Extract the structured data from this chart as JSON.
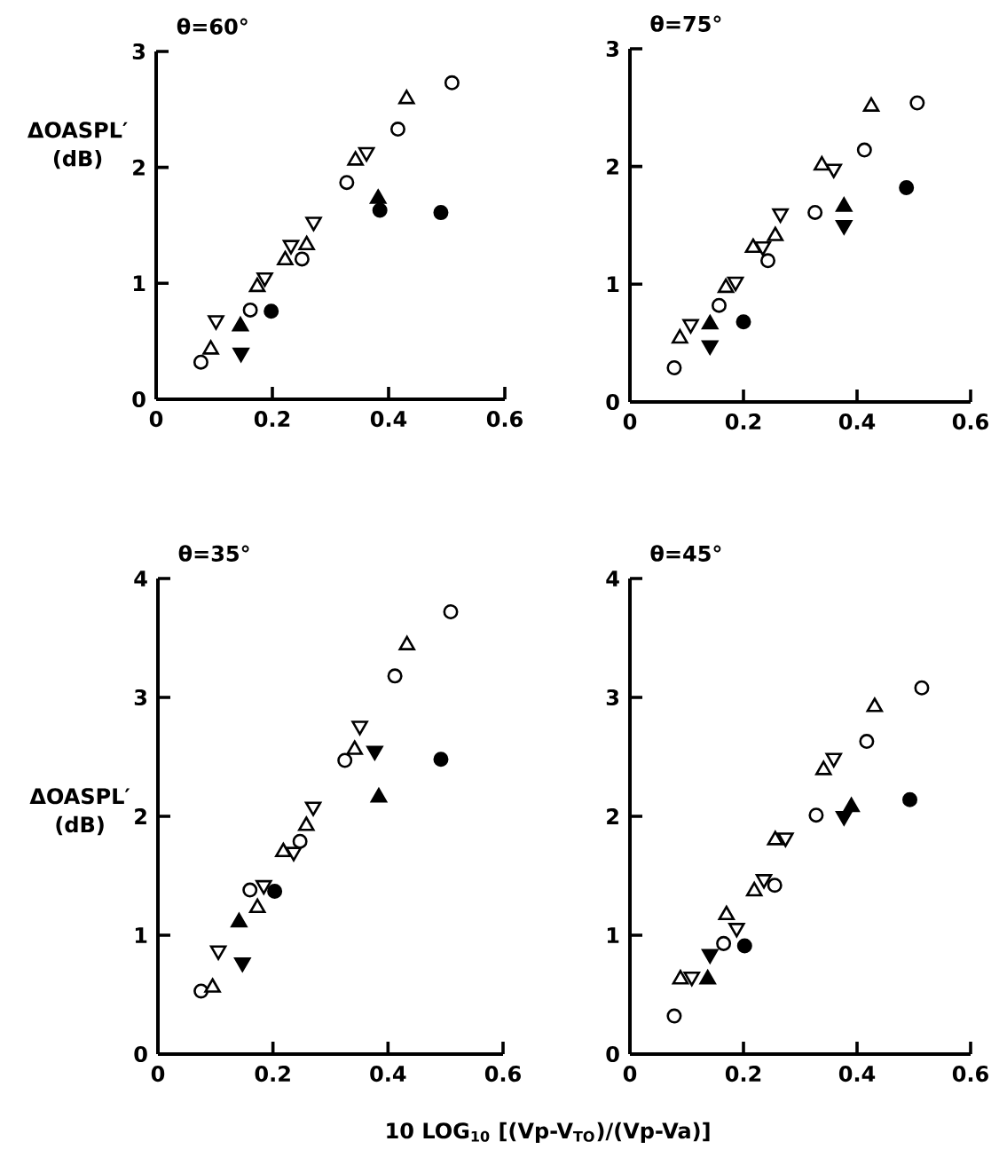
{
  "chart_data": [
    {
      "type": "scatter",
      "title": "θ=60°",
      "ylabel": "ΔOASPL′ (dB)",
      "xlim": [
        0,
        0.6
      ],
      "ylim": [
        0,
        3
      ],
      "xticks": [
        0,
        0.2,
        0.4,
        0.6
      ],
      "yticks": [
        0,
        1,
        2,
        3
      ],
      "series": [
        {
          "color": "#000000",
          "marker": "circle-open",
          "x": [
            0.077,
            0.162,
            0.251,
            0.328,
            0.416,
            0.509
          ],
          "values": [
            0.32,
            0.77,
            1.21,
            1.87,
            2.33,
            2.73
          ]
        },
        {
          "color": "#000000",
          "marker": "triangle-open",
          "x": [
            0.094,
            0.174,
            0.222,
            0.259,
            0.343,
            0.431
          ],
          "values": [
            0.43,
            0.97,
            1.2,
            1.33,
            2.06,
            2.59
          ]
        },
        {
          "color": "#000000",
          "marker": "triangle-down-open",
          "x": [
            0.103,
            0.187,
            0.232,
            0.271,
            0.362
          ],
          "values": [
            0.68,
            1.05,
            1.33,
            1.53,
            2.13
          ]
        },
        {
          "color": "#000000",
          "marker": "circle",
          "x": [
            0.198,
            0.385,
            0.49
          ],
          "values": [
            0.76,
            1.63,
            1.61
          ]
        },
        {
          "color": "#000000",
          "marker": "triangle",
          "x": [
            0.145,
            0.382
          ],
          "values": [
            0.63,
            1.73
          ]
        },
        {
          "color": "#000000",
          "marker": "triangle-down",
          "x": [
            0.146
          ],
          "values": [
            0.4
          ]
        }
      ]
    },
    {
      "type": "scatter",
      "title": "θ=75°",
      "xlim": [
        0,
        0.6
      ],
      "ylim": [
        0,
        3
      ],
      "xticks": [
        0,
        0.2,
        0.4,
        0.6
      ],
      "yticks": [
        0,
        1,
        2,
        3
      ],
      "series": [
        {
          "color": "#000000",
          "marker": "circle-open",
          "x": [
            0.078,
            0.157,
            0.243,
            0.326,
            0.413,
            0.506
          ],
          "values": [
            0.29,
            0.82,
            1.2,
            1.61,
            2.14,
            2.54
          ]
        },
        {
          "color": "#000000",
          "marker": "triangle-open",
          "x": [
            0.088,
            0.169,
            0.217,
            0.256,
            0.338,
            0.425
          ],
          "values": [
            0.54,
            0.97,
            1.31,
            1.41,
            2.01,
            2.51
          ]
        },
        {
          "color": "#000000",
          "marker": "triangle-down-open",
          "x": [
            0.107,
            0.186,
            0.234,
            0.265,
            0.359
          ],
          "values": [
            0.66,
            1.02,
            1.32,
            1.6,
            1.98
          ]
        },
        {
          "color": "#000000",
          "marker": "circle",
          "x": [
            0.2,
            0.487
          ],
          "values": [
            0.68,
            1.82
          ]
        },
        {
          "color": "#000000",
          "marker": "triangle",
          "x": [
            0.141,
            0.377
          ],
          "values": [
            0.66,
            1.66
          ]
        },
        {
          "color": "#000000",
          "marker": "triangle-down",
          "x": [
            0.141,
            0.377
          ],
          "values": [
            0.48,
            1.5
          ]
        }
      ]
    },
    {
      "type": "scatter",
      "title": "θ=35°",
      "ylabel": "ΔOASPL′ (dB)",
      "xlabel": "10 LOG$_{10}$ [(Vp-V$_{TO}$)/(Vp-Va)]",
      "xlim": [
        0,
        0.6
      ],
      "ylim": [
        0,
        4
      ],
      "xticks": [
        0,
        0.2,
        0.4,
        0.6
      ],
      "yticks": [
        0,
        1,
        2,
        3,
        4
      ],
      "series": [
        {
          "color": "#000000",
          "marker": "circle-open",
          "x": [
            0.075,
            0.16,
            0.247,
            0.325,
            0.412,
            0.509
          ],
          "values": [
            0.53,
            1.38,
            1.79,
            2.47,
            3.18,
            3.72
          ]
        },
        {
          "color": "#000000",
          "marker": "triangle-open",
          "x": [
            0.095,
            0.173,
            0.218,
            0.258,
            0.342,
            0.433
          ],
          "values": [
            0.56,
            1.23,
            1.7,
            1.92,
            2.56,
            3.44
          ]
        },
        {
          "color": "#000000",
          "marker": "triangle-down-open",
          "x": [
            0.105,
            0.184,
            0.236,
            0.27,
            0.351
          ],
          "values": [
            0.87,
            1.42,
            1.7,
            2.08,
            2.76
          ]
        },
        {
          "color": "#000000",
          "marker": "circle",
          "x": [
            0.203,
            0.492
          ],
          "values": [
            1.37,
            2.48
          ]
        },
        {
          "color": "#000000",
          "marker": "triangle",
          "x": [
            0.141,
            0.384
          ],
          "values": [
            1.11,
            2.16
          ]
        },
        {
          "color": "#000000",
          "marker": "triangle-down",
          "x": [
            0.147,
            0.377
          ],
          "values": [
            0.77,
            2.55
          ]
        }
      ]
    },
    {
      "type": "scatter",
      "title": "θ=45°",
      "xlim": [
        0,
        0.6
      ],
      "ylim": [
        0,
        4
      ],
      "xticks": [
        0,
        0.2,
        0.4,
        0.6
      ],
      "yticks": [
        0,
        1,
        2,
        3,
        4
      ],
      "series": [
        {
          "color": "#000000",
          "marker": "circle-open",
          "x": [
            0.078,
            0.165,
            0.255,
            0.328,
            0.417,
            0.514
          ],
          "values": [
            0.32,
            0.93,
            1.42,
            2.01,
            2.63,
            3.08
          ]
        },
        {
          "color": "#000000",
          "marker": "triangle-open",
          "x": [
            0.089,
            0.17,
            0.219,
            0.256,
            0.341,
            0.431
          ],
          "values": [
            0.63,
            1.17,
            1.37,
            1.8,
            2.39,
            2.92
          ]
        },
        {
          "color": "#000000",
          "marker": "triangle-down-open",
          "x": [
            0.109,
            0.188,
            0.236,
            0.274,
            0.359
          ],
          "values": [
            0.65,
            1.06,
            1.47,
            1.82,
            2.49
          ]
        },
        {
          "color": "#000000",
          "marker": "circle",
          "x": [
            0.202,
            0.493
          ],
          "values": [
            0.91,
            2.14
          ]
        },
        {
          "color": "#000000",
          "marker": "triangle",
          "x": [
            0.137,
            0.39
          ],
          "values": [
            0.63,
            2.08
          ]
        },
        {
          "color": "#000000",
          "marker": "triangle-down",
          "x": [
            0.141,
            0.377
          ],
          "values": [
            0.84,
            2.0
          ]
        }
      ]
    }
  ]
}
